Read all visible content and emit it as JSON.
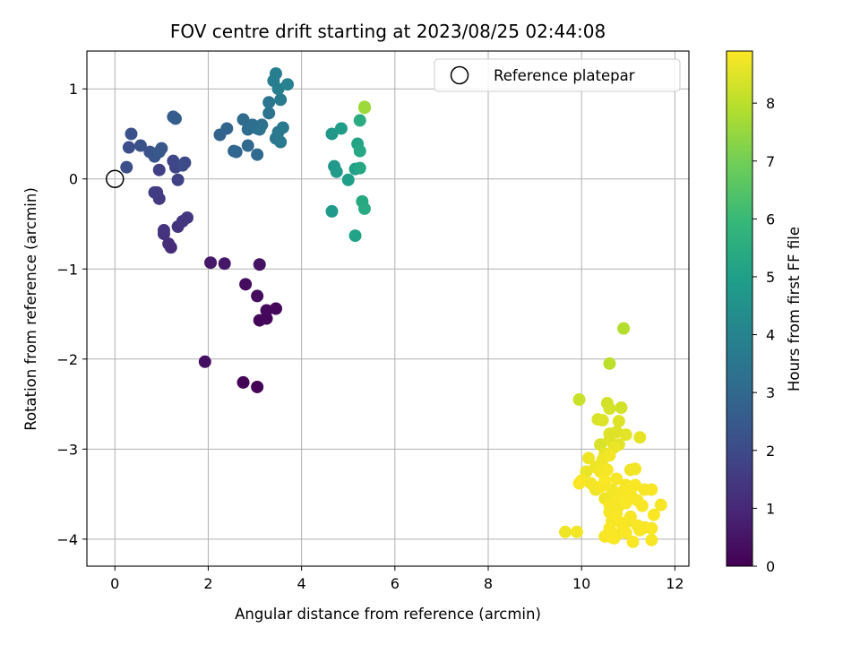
{
  "chart_data": {
    "type": "scatter",
    "title": "FOV centre drift starting at 2023/08/25 02:44:08",
    "xlabel": "Angular distance from reference (arcmin)",
    "ylabel": "Rotation from reference (arcmin)",
    "xlim": [
      -0.6,
      12.3
    ],
    "ylim": [
      -4.3,
      1.42
    ],
    "x_ticks": [
      0,
      2,
      4,
      6,
      8,
      10,
      12
    ],
    "x_tick_labels": [
      "0",
      "2",
      "4",
      "6",
      "8",
      "10",
      "12"
    ],
    "y_ticks": [
      -4,
      -3,
      -2,
      -1,
      0,
      1
    ],
    "y_tick_labels": [
      "−4",
      "−3",
      "−2",
      "−1",
      "0",
      "1"
    ],
    "grid": true,
    "legend": {
      "placement": "top-right",
      "entries": [
        {
          "label": "Reference platepar",
          "marker": "open-circle"
        }
      ]
    },
    "reference": {
      "x": 0,
      "y": 0
    },
    "colorbar": {
      "label": "Hours from first FF file",
      "colormap": "viridis",
      "range": [
        0,
        8.9
      ],
      "ticks": [
        0,
        1,
        2,
        3,
        4,
        5,
        6,
        7,
        8
      ],
      "tick_labels": [
        "0",
        "1",
        "2",
        "3",
        "4",
        "5",
        "6",
        "7",
        "8"
      ]
    },
    "series": [
      {
        "points": [
          [
            3.05,
            -2.31,
            0.05
          ],
          [
            2.75,
            -2.26,
            0.1
          ],
          [
            1.93,
            -2.03,
            0.35
          ],
          [
            3.1,
            -1.57,
            0.12
          ],
          [
            3.25,
            -1.55,
            0.15
          ],
          [
            3.45,
            -1.44,
            0.18
          ],
          [
            3.25,
            -1.46,
            0.2
          ],
          [
            3.05,
            -1.3,
            0.25
          ],
          [
            2.8,
            -1.17,
            0.3
          ],
          [
            3.1,
            -0.95,
            0.45
          ],
          [
            2.05,
            -0.93,
            0.6
          ],
          [
            2.35,
            -0.94,
            0.55
          ],
          [
            1.2,
            -0.76,
            1.1
          ],
          [
            1.15,
            -0.72,
            1.15
          ],
          [
            1.05,
            -0.61,
            1.25
          ],
          [
            1.05,
            -0.57,
            1.3
          ],
          [
            1.35,
            -0.53,
            1.35
          ],
          [
            1.45,
            -0.47,
            1.4
          ],
          [
            1.55,
            -0.43,
            1.45
          ],
          [
            0.95,
            -0.22,
            1.5
          ],
          [
            0.9,
            -0.15,
            1.55
          ],
          [
            0.85,
            -0.15,
            1.6
          ],
          [
            0.95,
            0.1,
            1.7
          ],
          [
            1.35,
            -0.01,
            1.75
          ],
          [
            1.3,
            0.13,
            1.8
          ],
          [
            1.25,
            0.2,
            1.9
          ],
          [
            1.5,
            0.18,
            1.95
          ],
          [
            1.45,
            0.15,
            2.0
          ],
          [
            0.25,
            0.13,
            2.1
          ],
          [
            0.3,
            0.35,
            2.15
          ],
          [
            0.35,
            0.5,
            2.2
          ],
          [
            0.55,
            0.37,
            2.25
          ],
          [
            0.75,
            0.3,
            2.3
          ],
          [
            0.85,
            0.25,
            2.35
          ],
          [
            1.0,
            0.34,
            2.4
          ],
          [
            0.95,
            0.3,
            2.45
          ],
          [
            1.25,
            0.69,
            2.6
          ],
          [
            1.3,
            0.67,
            2.65
          ],
          [
            2.25,
            0.49,
            2.8
          ],
          [
            2.4,
            0.56,
            2.85
          ],
          [
            2.55,
            0.31,
            2.9
          ],
          [
            2.6,
            0.3,
            2.95
          ],
          [
            2.85,
            0.37,
            3.0
          ],
          [
            3.05,
            0.27,
            3.05
          ],
          [
            2.75,
            0.66,
            3.1
          ],
          [
            2.85,
            0.55,
            3.15
          ],
          [
            2.95,
            0.6,
            3.2
          ],
          [
            3.05,
            0.56,
            3.25
          ],
          [
            3.15,
            0.6,
            3.3
          ],
          [
            3.1,
            0.55,
            3.35
          ],
          [
            3.3,
            0.73,
            3.4
          ],
          [
            3.3,
            0.85,
            3.45
          ],
          [
            3.45,
            0.45,
            3.5
          ],
          [
            3.5,
            0.52,
            3.55
          ],
          [
            3.55,
            0.41,
            3.6
          ],
          [
            3.6,
            0.57,
            3.65
          ],
          [
            3.55,
            0.88,
            3.7
          ],
          [
            3.4,
            1.09,
            3.75
          ],
          [
            3.45,
            1.17,
            3.8
          ],
          [
            3.5,
            1.0,
            3.85
          ],
          [
            3.7,
            1.05,
            3.9
          ],
          [
            4.65,
            -0.36,
            4.8
          ],
          [
            4.7,
            0.14,
            4.75
          ],
          [
            4.65,
            0.5,
            4.7
          ],
          [
            4.75,
            0.08,
            4.85
          ],
          [
            4.85,
            0.56,
            4.9
          ],
          [
            5.0,
            -0.01,
            5.0
          ],
          [
            5.15,
            0.11,
            5.05
          ],
          [
            5.15,
            -0.63,
            5.1
          ],
          [
            5.2,
            0.39,
            5.2
          ],
          [
            5.25,
            0.12,
            5.25
          ],
          [
            5.25,
            0.31,
            5.3
          ],
          [
            5.3,
            -0.25,
            5.35
          ],
          [
            5.35,
            -0.33,
            5.4
          ],
          [
            5.25,
            0.65,
            5.5
          ],
          [
            5.35,
            0.8,
            7.5
          ],
          [
            5.35,
            0.79,
            7.6
          ],
          [
            10.9,
            -1.66,
            7.9
          ],
          [
            10.6,
            -2.05,
            8.0
          ],
          [
            9.95,
            -2.45,
            8.2
          ],
          [
            10.55,
            -2.49,
            8.3
          ],
          [
            10.6,
            -2.55,
            8.35
          ],
          [
            10.85,
            -2.54,
            8.3
          ],
          [
            10.35,
            -2.67,
            8.4
          ],
          [
            10.45,
            -2.68,
            8.45
          ],
          [
            10.8,
            -2.69,
            8.5
          ],
          [
            10.6,
            -2.83,
            8.45
          ],
          [
            10.75,
            -2.81,
            8.5
          ],
          [
            10.95,
            -2.84,
            8.55
          ],
          [
            11.25,
            -2.87,
            8.6
          ],
          [
            10.4,
            -2.95,
            8.4
          ],
          [
            10.6,
            -2.9,
            8.5
          ],
          [
            10.8,
            -2.95,
            8.55
          ],
          [
            10.5,
            -3.05,
            8.6
          ],
          [
            10.7,
            -2.98,
            8.65
          ],
          [
            10.15,
            -3.1,
            8.7
          ],
          [
            10.45,
            -3.12,
            8.7
          ],
          [
            10.6,
            -3.07,
            8.75
          ],
          [
            10.3,
            -3.2,
            8.7
          ],
          [
            10.4,
            -3.25,
            8.75
          ],
          [
            10.55,
            -3.23,
            8.8
          ],
          [
            10.1,
            -3.25,
            8.65
          ],
          [
            11.05,
            -3.23,
            8.7
          ],
          [
            11.15,
            -3.22,
            8.75
          ],
          [
            10.0,
            -3.35,
            8.8
          ],
          [
            10.2,
            -3.38,
            8.75
          ],
          [
            9.95,
            -3.38,
            8.85
          ],
          [
            10.4,
            -3.42,
            8.8
          ],
          [
            10.5,
            -3.35,
            8.85
          ],
          [
            10.75,
            -3.33,
            8.8
          ],
          [
            10.95,
            -3.4,
            8.8
          ],
          [
            11.15,
            -3.4,
            8.85
          ],
          [
            10.3,
            -3.45,
            8.7
          ],
          [
            10.65,
            -3.45,
            8.75
          ],
          [
            10.85,
            -3.48,
            8.8
          ],
          [
            11.05,
            -3.5,
            8.85
          ],
          [
            11.35,
            -3.45,
            8.8
          ],
          [
            11.5,
            -3.45,
            8.85
          ],
          [
            10.5,
            -3.55,
            8.7
          ],
          [
            10.75,
            -3.55,
            8.8
          ],
          [
            10.95,
            -3.6,
            8.85
          ],
          [
            11.2,
            -3.57,
            8.8
          ],
          [
            10.6,
            -3.62,
            8.8
          ],
          [
            10.8,
            -3.63,
            8.75
          ],
          [
            11.3,
            -3.63,
            8.85
          ],
          [
            11.7,
            -3.62,
            8.8
          ],
          [
            10.6,
            -3.7,
            8.8
          ],
          [
            10.75,
            -3.72,
            8.85
          ],
          [
            11.05,
            -3.75,
            8.8
          ],
          [
            11.55,
            -3.73,
            8.85
          ],
          [
            10.65,
            -3.8,
            8.8
          ],
          [
            10.85,
            -3.82,
            8.85
          ],
          [
            11.0,
            -3.8,
            8.75
          ],
          [
            11.2,
            -3.85,
            8.8
          ],
          [
            10.6,
            -3.88,
            8.85
          ],
          [
            10.9,
            -3.9,
            8.8
          ],
          [
            11.25,
            -3.9,
            8.85
          ],
          [
            11.35,
            -3.87,
            8.8
          ],
          [
            11.5,
            -3.88,
            8.85
          ],
          [
            10.75,
            -3.95,
            8.8
          ],
          [
            10.95,
            -3.93,
            8.85
          ],
          [
            9.65,
            -3.92,
            8.7
          ],
          [
            9.9,
            -3.92,
            8.75
          ],
          [
            10.5,
            -3.97,
            8.8
          ],
          [
            10.65,
            -3.98,
            8.85
          ],
          [
            10.7,
            -3.99,
            8.8
          ],
          [
            11.1,
            -4.03,
            8.85
          ],
          [
            11.5,
            -4.01,
            8.8
          ]
        ]
      }
    ]
  }
}
